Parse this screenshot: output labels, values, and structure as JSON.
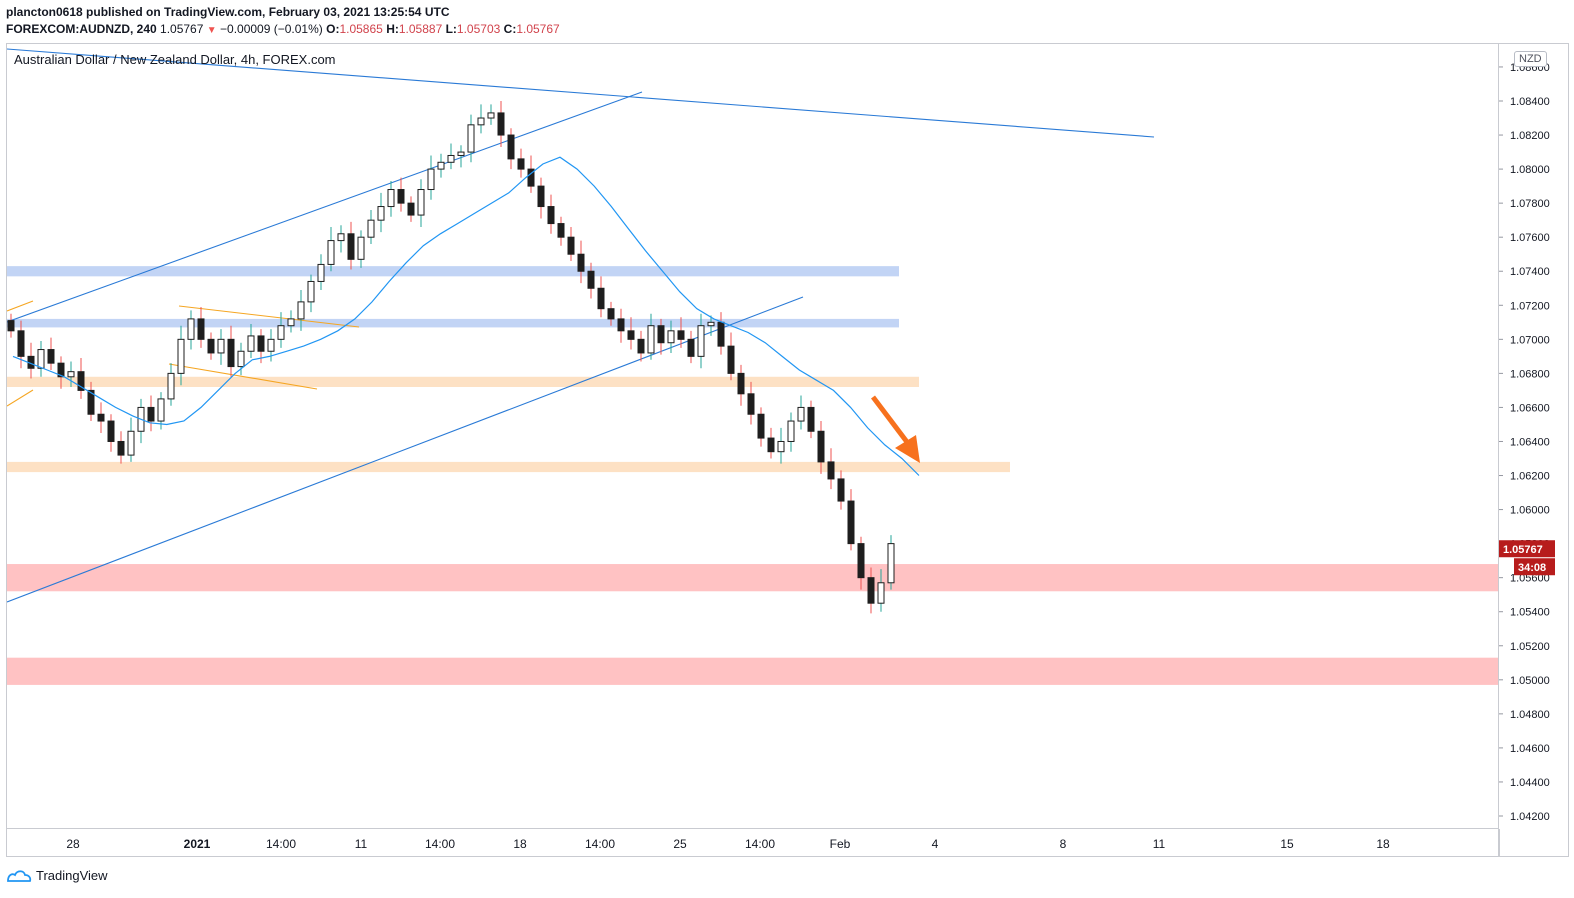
{
  "header": {
    "line1": "plancton0618 published on TradingView.com, February 03, 2021 13:25:54 UTC",
    "symbol": "FOREXCOM:AUDNZD, 240",
    "last": "1.05767",
    "change": "−0.00009 (−0.01%)",
    "open_label": "O:",
    "open": "1.05865",
    "high_label": "H:",
    "high": "1.05887",
    "low_label": "L:",
    "low": "1.05703",
    "close_label": "C:",
    "close": "1.05767"
  },
  "legend": "Australian Dollar / New Zealand Dollar, 4h, FOREX.com",
  "currency": "NZD",
  "current_price_label": "1.05767",
  "countdown": "34:08",
  "footer_brand": "TradingView",
  "colors": {
    "up": "#26a69a",
    "down": "#ef5350",
    "candle": "#1e1e1e",
    "ma": "#2196f3",
    "trend": "#2a7ad6",
    "blue_zone": "#b7cdf3",
    "orange_zone": "#fddcba",
    "red_zone": "#ffb7b8",
    "arrow": "#f7711d",
    "price_tag": "#b71c1c"
  },
  "chart_data": {
    "type": "candlestick",
    "title": "Australian Dollar / New Zealand Dollar, 4h, FOREX.com",
    "ylim": [
      1.041,
      1.0872
    ],
    "y_ticks": [
      "1.04200",
      "1.04400",
      "1.04600",
      "1.04800",
      "1.05000",
      "1.05200",
      "1.05400",
      "1.05600",
      "1.05800",
      "1.06000",
      "1.06200",
      "1.06400",
      "1.06600",
      "1.06800",
      "1.07000",
      "1.07200",
      "1.07400",
      "1.07600",
      "1.07800",
      "1.08000",
      "1.08200",
      "1.08400",
      "1.08600"
    ],
    "x_ticks": [
      "28",
      "2021",
      "14:00",
      "11",
      "14:00",
      "18",
      "14:00",
      "25",
      "14:00",
      "Feb",
      "4",
      "8",
      "11",
      "15",
      "18"
    ],
    "close_path": [
      1.0705,
      1.069,
      1.0683,
      1.0694,
      1.0686,
      1.0678,
      1.0681,
      1.067,
      1.0656,
      1.0652,
      1.064,
      1.0632,
      1.0646,
      1.066,
      1.0652,
      1.0665,
      1.068,
      1.07,
      1.0712,
      1.07,
      1.0692,
      1.07,
      1.0684,
      1.0693,
      1.0702,
      1.0693,
      1.07,
      1.0708,
      1.0712,
      1.0722,
      1.0734,
      1.0744,
      1.0758,
      1.0762,
      1.0747,
      1.076,
      1.077,
      1.0778,
      1.0788,
      1.078,
      1.0773,
      1.0788,
      1.08,
      1.0804,
      1.0808,
      1.081,
      1.0826,
      1.083,
      1.0833,
      1.082,
      1.0806,
      1.08,
      1.079,
      1.0778,
      1.0768,
      1.076,
      1.075,
      1.074,
      1.073,
      1.0718,
      1.0712,
      1.0705,
      1.07,
      1.0692,
      1.0708,
      1.0698,
      1.0705,
      1.07,
      1.069,
      1.0708,
      1.071,
      1.0696,
      1.068,
      1.0668,
      1.0656,
      1.0642,
      1.0634,
      1.064,
      1.0652,
      1.066,
      1.0646,
      1.0628,
      1.0618,
      1.0605,
      1.058,
      1.056,
      1.0545,
      1.0557,
      1.058
    ],
    "ma_path": [
      1.069,
      1.0686,
      1.0682,
      1.0678,
      1.0672,
      1.0666,
      1.066,
      1.0655,
      1.0651,
      1.065,
      1.0652,
      1.066,
      1.067,
      1.068,
      1.0688,
      1.069,
      1.0693,
      1.0696,
      1.07,
      1.0705,
      1.0712,
      1.0722,
      1.0734,
      1.0745,
      1.0755,
      1.0762,
      1.0768,
      1.0774,
      1.078,
      1.0786,
      1.0795,
      1.0803,
      1.0807,
      1.08,
      1.079,
      1.0778,
      1.0765,
      1.0752,
      1.074,
      1.0728,
      1.0718,
      1.0712,
      1.0708,
      1.0704,
      1.0698,
      1.069,
      1.0682,
      1.0676,
      1.067,
      1.066,
      1.0648,
      1.0638,
      1.063,
      1.062
    ],
    "zones": [
      {
        "color": "blue",
        "low": 1.0737,
        "high": 1.0743,
        "to_date": "Feb 3"
      },
      {
        "color": "blue",
        "low": 1.0707,
        "high": 1.0712,
        "to_date": "Feb 3"
      },
      {
        "color": "orange",
        "low": 1.0672,
        "high": 1.0678,
        "to_date": "Feb 3"
      },
      {
        "color": "orange",
        "low": 1.0622,
        "high": 1.0628,
        "to_date": "Feb 5"
      },
      {
        "color": "red",
        "low": 1.0552,
        "high": 1.0568,
        "to_date": "right edge"
      },
      {
        "color": "red",
        "low": 1.0497,
        "high": 1.0513,
        "to_date": "right edge"
      }
    ]
  }
}
